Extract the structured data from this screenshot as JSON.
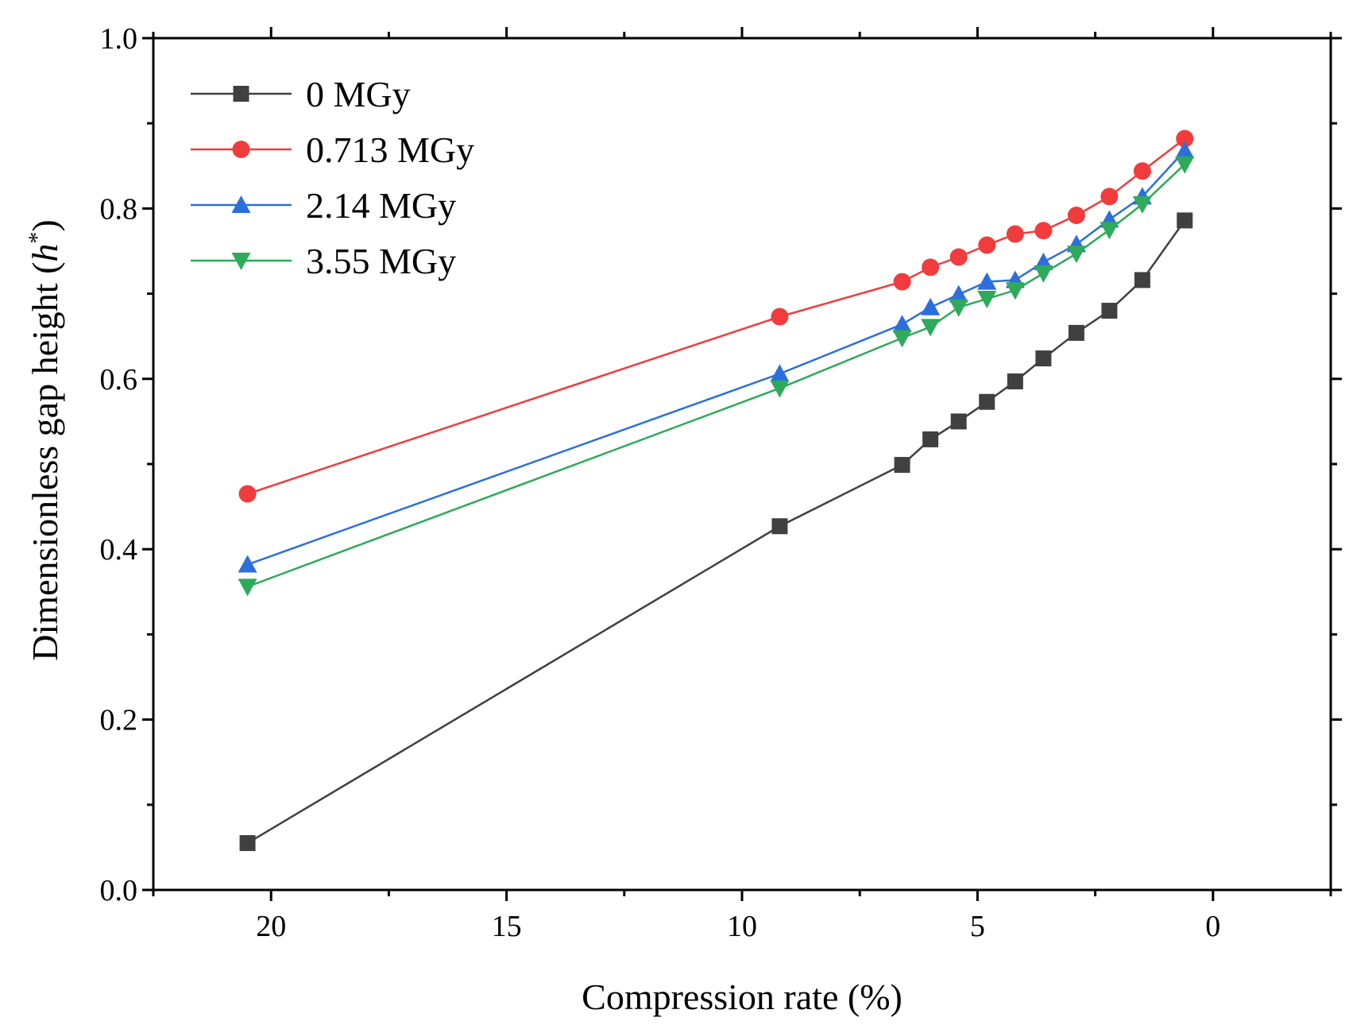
{
  "chart_data": {
    "type": "line",
    "title": "",
    "xlabel": "Compression rate (%)",
    "ylabel_main": "Dimensionless gap height (",
    "ylabel_symbol": "h",
    "ylabel_sup": "*",
    "ylabel_close": ")",
    "xlim": [
      22.5,
      -2.5
    ],
    "ylim": [
      0.0,
      1.0
    ],
    "x_ticks": [
      20,
      15,
      10,
      5,
      0
    ],
    "x_tick_labels": [
      "20",
      "15",
      "10",
      "5",
      "0"
    ],
    "x_minor_ticks": [
      17.5,
      12.5,
      7.5,
      2.5,
      -2.5,
      22.5
    ],
    "y_ticks": [
      0.0,
      0.2,
      0.4,
      0.6,
      0.8,
      1.0
    ],
    "y_tick_labels": [
      "0.0",
      "0.2",
      "0.4",
      "0.6",
      "0.8",
      "1.0"
    ],
    "y_minor_ticks": [
      0.1,
      0.3,
      0.5,
      0.7,
      0.9
    ],
    "grid": false,
    "legend_position": "top-left",
    "x": [
      20.5,
      9.2,
      6.6,
      6.0,
      5.4,
      4.8,
      4.2,
      3.6,
      2.9,
      2.2,
      1.5,
      0.6
    ],
    "series": [
      {
        "name": "0 MGy",
        "color": "#404040",
        "marker": "square",
        "values": [
          0.055,
          0.427,
          0.499,
          0.529,
          0.55,
          0.573,
          0.597,
          0.624,
          0.654,
          0.68,
          0.716,
          0.786
        ]
      },
      {
        "name": "0.713 MGy",
        "color": "#f03c3c",
        "marker": "circle",
        "values": [
          0.465,
          0.673,
          0.714,
          0.731,
          0.743,
          0.757,
          0.77,
          0.774,
          0.792,
          0.814,
          0.844,
          0.882
        ]
      },
      {
        "name": "2.14 MGy",
        "color": "#2c6fdc",
        "marker": "triangle-up",
        "values": [
          0.382,
          0.606,
          0.664,
          0.684,
          0.699,
          0.714,
          0.716,
          0.737,
          0.758,
          0.787,
          0.814,
          0.868
        ]
      },
      {
        "name": "3.55 MGy",
        "color": "#2eaa5a",
        "marker": "triangle-down",
        "values": [
          0.356,
          0.589,
          0.648,
          0.661,
          0.684,
          0.694,
          0.704,
          0.724,
          0.747,
          0.775,
          0.805,
          0.852
        ]
      }
    ]
  }
}
